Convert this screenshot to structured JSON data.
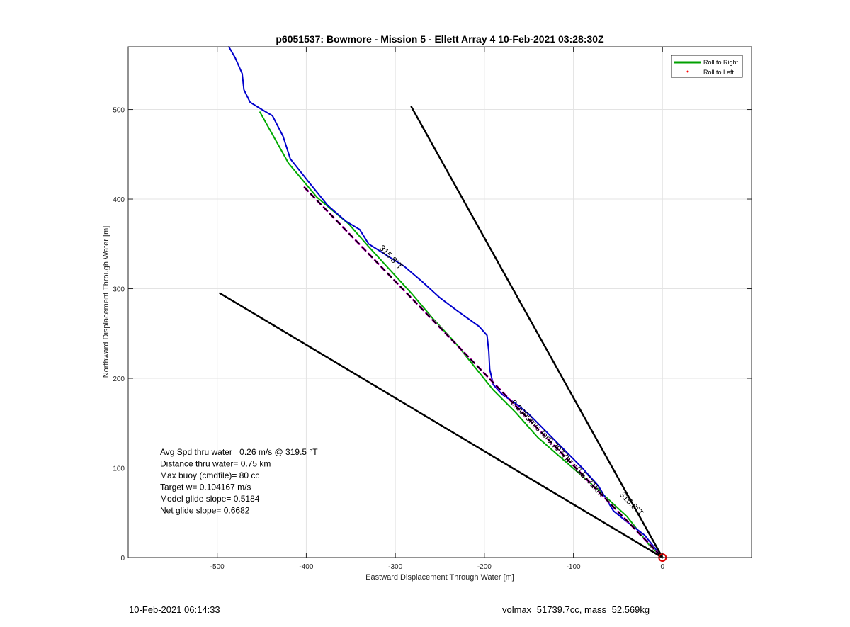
{
  "footer": {
    "left": "10-Feb-2021 06:14:33",
    "right": "volmax=51739.7cc, mass=52.569kg"
  },
  "chart_data": {
    "type": "line",
    "title": "p6051537: Bowmore - Mission 5 - Ellett Array 4 10-Feb-2021 03:28:30Z",
    "xlabel": "Eastward Displacement Through Water [m]",
    "ylabel": "Northward Displacement Through Water [m]",
    "xlim": [
      -600,
      100
    ],
    "ylim": [
      0,
      570
    ],
    "xticks": [
      -500,
      -400,
      -300,
      -200,
      -100,
      0
    ],
    "yticks": [
      0,
      100,
      200,
      300,
      400,
      500
    ],
    "grid": true,
    "legend_position": "top-right",
    "legend": [
      {
        "label": "Roll to Right",
        "color": "#00a000",
        "style": "line"
      },
      {
        "label": "Roll to Left",
        "color": "#ff0000",
        "style": "dot"
      }
    ],
    "series": [
      {
        "name": "Roll to Right",
        "color": "#00aa00",
        "width": 2,
        "points": [
          [
            -452,
            497
          ],
          [
            -420,
            440
          ],
          [
            -388,
            402
          ],
          [
            -352,
            372
          ],
          [
            -330,
            347
          ],
          [
            -306,
            321
          ],
          [
            -282,
            295
          ],
          [
            -258,
            267
          ],
          [
            -232,
            239
          ],
          [
            -212,
            214
          ],
          [
            -190,
            187
          ],
          [
            -165,
            162
          ],
          [
            -140,
            134
          ],
          [
            -110,
            108
          ],
          [
            -75,
            78
          ],
          [
            -40,
            46
          ],
          [
            -14,
            13
          ],
          [
            0,
            0
          ]
        ]
      },
      {
        "name": "",
        "color": "#0000cc",
        "width": 2,
        "points": [
          [
            -487,
            570
          ],
          [
            -480,
            558
          ],
          [
            -472,
            540
          ],
          [
            -470,
            522
          ],
          [
            -463,
            508
          ],
          [
            -450,
            500
          ],
          [
            -438,
            493
          ],
          [
            -426,
            470
          ],
          [
            -418,
            445
          ],
          [
            -398,
            420
          ],
          [
            -376,
            393
          ],
          [
            -355,
            375
          ],
          [
            -340,
            366
          ],
          [
            -330,
            350
          ],
          [
            -322,
            345
          ],
          [
            -306,
            335
          ],
          [
            -290,
            325
          ],
          [
            -270,
            308
          ],
          [
            -250,
            290
          ],
          [
            -230,
            275
          ],
          [
            -206,
            258
          ],
          [
            -197,
            248
          ],
          [
            -195,
            230
          ],
          [
            -194,
            210
          ],
          [
            -190,
            193
          ],
          [
            -180,
            182
          ],
          [
            -165,
            172
          ],
          [
            -150,
            160
          ],
          [
            -130,
            140
          ],
          [
            -110,
            120
          ],
          [
            -90,
            100
          ],
          [
            -72,
            80
          ],
          [
            -66,
            70
          ],
          [
            -55,
            52
          ],
          [
            -40,
            40
          ],
          [
            -20,
            25
          ],
          [
            -8,
            10
          ],
          [
            0,
            0
          ]
        ]
      },
      {
        "name": "",
        "color": "#ee00ee",
        "width": 3,
        "dash": "7,6",
        "points": [
          [
            -402,
            413
          ],
          [
            0,
            0
          ]
        ]
      },
      {
        "name": "",
        "color": "#000000",
        "width": 2,
        "dash": "7,6",
        "points": [
          [
            -402,
            413
          ],
          [
            0,
            0
          ]
        ]
      },
      {
        "name": "",
        "color": "#000000",
        "width": 2.5,
        "points": [
          [
            -282,
            503
          ],
          [
            0,
            0
          ]
        ]
      },
      {
        "name": "",
        "color": "#000000",
        "width": 2.5,
        "points": [
          [
            -497,
            295
          ],
          [
            0,
            0
          ]
        ]
      }
    ],
    "markers": [
      {
        "name": "",
        "shape": "circle",
        "color": "#dd0000",
        "x": 0,
        "y": 0
      }
    ],
    "annotations": [
      {
        "text": "315.8°T",
        "x": -307,
        "y": 333,
        "angle": 46,
        "size": 12
      },
      {
        "text": "315.8°T",
        "x": -37,
        "y": 58,
        "angle": 46,
        "size": 12
      },
      {
        "text": "0.2009m/s for0.7977hr =0.5771km",
        "x": -120,
        "y": 120,
        "angle": 46,
        "size": 12
      }
    ],
    "stats": [
      "Avg Spd thru water=  0.26 m/s @ 319.5 °T",
      "Distance thru water=  0.75 km",
      "Max buoy (cmdfile)= 80 cc",
      "Target w= 0.104167 m/s",
      "Model glide slope= 0.5184",
      "Net glide slope= 0.6682"
    ]
  }
}
